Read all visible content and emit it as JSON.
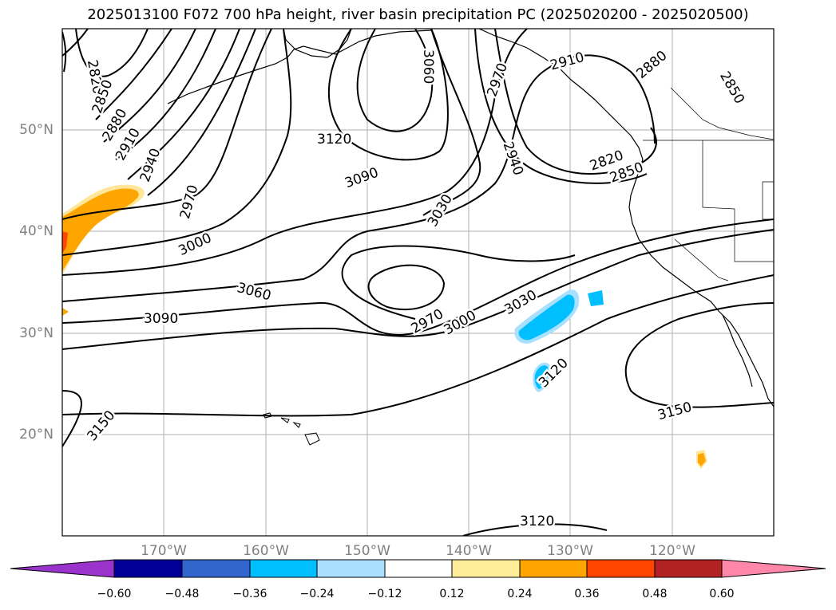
{
  "title": "2025013100 F072 700 hPa height, river basin precipitation PC (2025020200 - 2025020500)",
  "map": {
    "lon_range": [
      -180,
      -110
    ],
    "lat_range": [
      10,
      60
    ],
    "lat_labels": [
      "50°N",
      "40°N",
      "30°N",
      "20°N"
    ],
    "lon_labels": [
      "170°W",
      "160°W",
      "150°W",
      "140°W",
      "130°W",
      "120°W"
    ],
    "contour_labels": [
      "2820",
      "2850",
      "2880",
      "2910",
      "2940",
      "2970",
      "3000",
      "3030",
      "3060",
      "3090",
      "3120",
      "3150"
    ]
  },
  "colorbar": {
    "ticks": [
      "−0.60",
      "−0.48",
      "−0.36",
      "−0.24",
      "−0.12",
      "0.12",
      "0.24",
      "0.36",
      "0.48",
      "0.60"
    ],
    "colors": [
      "#9933cc",
      "#000099",
      "#3366cc",
      "#00bfff",
      "#aae0ff",
      "#ffffff",
      "#ffee99",
      "#ffa500",
      "#ff4500",
      "#b22222",
      "#ff88aa"
    ]
  }
}
